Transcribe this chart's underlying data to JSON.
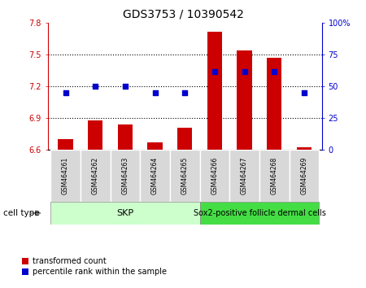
{
  "title": "GDS3753 / 10390542",
  "samples": [
    "GSM464261",
    "GSM464262",
    "GSM464263",
    "GSM464264",
    "GSM464265",
    "GSM464266",
    "GSM464267",
    "GSM464268",
    "GSM464269"
  ],
  "bar_values": [
    6.7,
    6.88,
    6.84,
    6.67,
    6.81,
    7.72,
    7.54,
    7.47,
    6.62
  ],
  "bar_base": 6.6,
  "percentile_values": [
    45,
    50,
    50,
    45,
    45,
    62,
    62,
    62,
    45
  ],
  "ylim_left": [
    6.6,
    7.8
  ],
  "ylim_right": [
    0,
    100
  ],
  "yticks_left": [
    6.6,
    6.9,
    7.2,
    7.5,
    7.8
  ],
  "ytick_labels_left": [
    "6.6",
    "6.9",
    "7.2",
    "7.5",
    "7.8"
  ],
  "yticks_right": [
    0,
    25,
    50,
    75,
    100
  ],
  "ytick_labels_right": [
    "0",
    "25",
    "50",
    "75",
    "100%"
  ],
  "bar_color": "#cc0000",
  "dot_color": "#0000cc",
  "grid_lines": [
    6.9,
    7.2,
    7.5
  ],
  "skp_color": "#ccffcc",
  "sox2_color": "#44dd44",
  "skp_samples": 5,
  "sox2_samples": 4,
  "skp_label": "SKP",
  "sox2_label": "Sox2-positive follicle dermal cells",
  "cell_type_label": "cell type",
  "legend_items": [
    {
      "label": "transformed count",
      "color": "#cc0000"
    },
    {
      "label": "percentile rank within the sample",
      "color": "#0000cc"
    }
  ],
  "bar_width": 0.5,
  "dot_size": 18
}
